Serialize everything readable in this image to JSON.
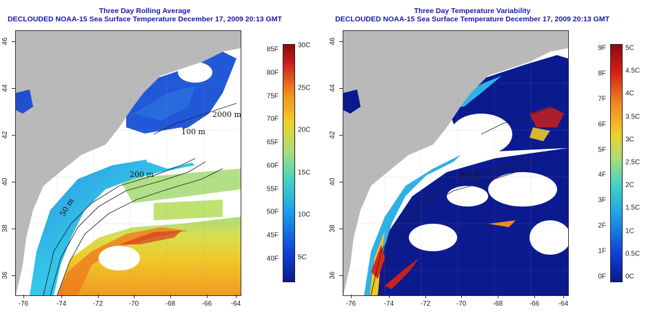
{
  "colors": {
    "land": "#b9b9b9",
    "nodata": "#ffffff",
    "title": "#1a1aa8",
    "deep_blue": "#0c1a8f",
    "ocean_cold": "#2060e0",
    "cyan": "#34c8e8",
    "green": "#a8dd7a",
    "yellow": "#f0c828",
    "orange": "#f08a1e",
    "red": "#c8201a",
    "dark_red": "#8c0a0a"
  },
  "contour_labels": {
    "depth_200": "200  m",
    "depth_100": "100  m",
    "depth_50": "50  m",
    "depth_2000": "2000  m"
  },
  "x_ticks": [
    "-76",
    "-74",
    "-72",
    "-70",
    "-68",
    "-66",
    "-64"
  ],
  "y_ticks": [
    "36",
    "38",
    "40",
    "42",
    "44",
    "46"
  ],
  "panels": [
    {
      "id": "average",
      "title_line1": "Three Day Rolling Average",
      "title_line2": "DECLOUDED NOAA-15 Sea Surface Temperature December 17, 2009 20:13 GMT",
      "icon": "sea-surface-temperature-map",
      "colorbar_left": [
        "85F",
        "80F",
        "75F",
        "70F",
        "65F",
        "60F",
        "55F",
        "50F",
        "45F",
        "40F"
      ],
      "colorbar_right": [
        "30C",
        "25C",
        "20C",
        "15C",
        "10C",
        "5C"
      ]
    },
    {
      "id": "variability",
      "title_line1": "Three Day Temperature Variability",
      "title_line2": "DECLOUDED NOAA-15 Sea Surface Temperature December 17, 2009 20:13 GMT",
      "icon": "temperature-variability-map",
      "colorbar_left": [
        "9F",
        "8F",
        "7F",
        "6F",
        "5F",
        "4F",
        "3F",
        "2F",
        "1F",
        "0F"
      ],
      "colorbar_right": [
        "5C",
        "4.5C",
        "4C",
        "3.5C",
        "3C",
        "2.5C",
        "2C",
        "1.5C",
        "1C",
        "0.5C",
        "0C"
      ]
    }
  ]
}
